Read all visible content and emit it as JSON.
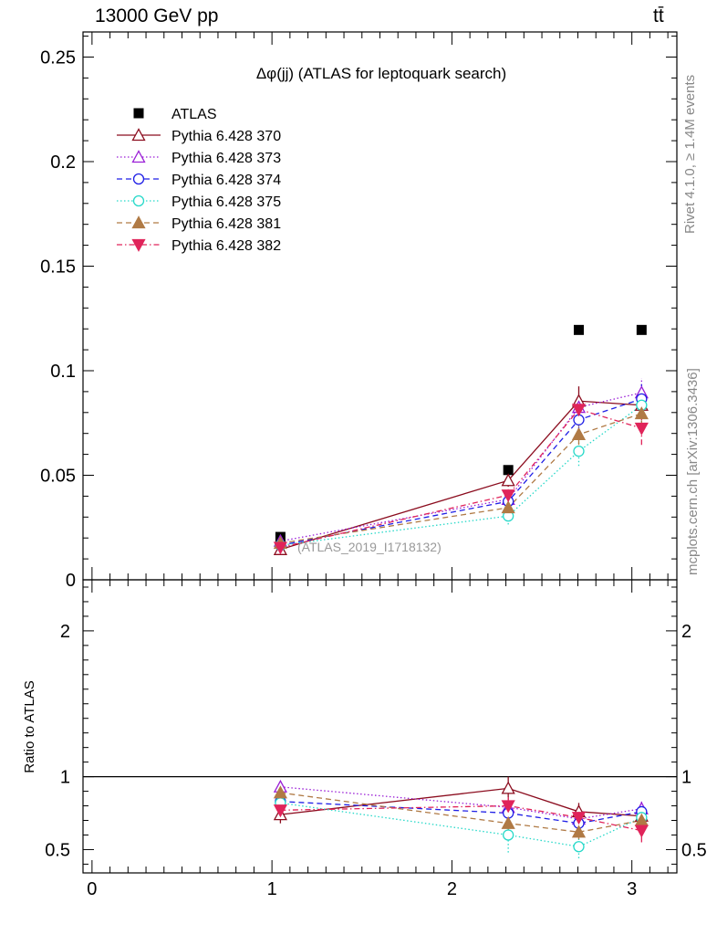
{
  "header": {
    "left": "13000 GeV pp",
    "right": "tt̄"
  },
  "side_labels": {
    "rivet": "Rivet 4.1.0, ≥ 1.4M events",
    "mcplots": "mcplots.cern.ch [arXiv:1306.3436]"
  },
  "watermark": "(ATLAS_2019_I1718132)",
  "colors": {
    "ATLAS": "#000000",
    "p370": "#8b0c1e",
    "p373": "#9a1ed6",
    "p374": "#1f1fe6",
    "p375": "#27d9c9",
    "p381": "#b07a45",
    "p382": "#e0245a"
  },
  "chart_data": [
    {
      "type": "scatter",
      "title": "Δφ(jj) (ATLAS for leptoquark search)",
      "xlabel": "",
      "ylabel": "",
      "xlim": [
        -0.05,
        3.25
      ],
      "ylim": [
        0,
        0.262
      ],
      "yticks": [
        0,
        0.05,
        0.1,
        0.15,
        0.2,
        0.25
      ],
      "ytick_labels": [
        "0",
        "0.05",
        "0.1",
        "0.15",
        "0.2",
        "0.25"
      ],
      "x": [
        1.047,
        2.313,
        2.705,
        3.054
      ],
      "series": [
        {
          "name": "ATLAS",
          "key": "ATLAS",
          "marker": "square-filled",
          "line": "none",
          "values": [
            0.0205,
            0.0525,
            0.1195,
            0.1195
          ],
          "errors": [
            0,
            0,
            0,
            0
          ]
        },
        {
          "name": "Pythia 6.428 370",
          "key": "p370",
          "marker": "triangle-up-open",
          "line": "solid",
          "values": [
            0.0145,
            0.0475,
            0.0855,
            0.0835
          ],
          "errors": [
            0.002,
            0.003,
            0.007,
            0.006
          ]
        },
        {
          "name": "Pythia 6.428 373",
          "key": "p373",
          "marker": "triangle-up-open",
          "line": "dotted",
          "values": [
            0.0185,
            0.0385,
            0.0825,
            0.0895
          ],
          "errors": [
            0.002,
            0.003,
            0.006,
            0.007
          ]
        },
        {
          "name": "Pythia 6.428 374",
          "key": "p374",
          "marker": "circle-open",
          "line": "dashed",
          "values": [
            0.0165,
            0.0375,
            0.0765,
            0.0865
          ],
          "errors": [
            0.002,
            0.003,
            0.006,
            0.007
          ]
        },
        {
          "name": "Pythia 6.428 375",
          "key": "p375",
          "marker": "circle-open",
          "line": "dotted",
          "values": [
            0.0165,
            0.0305,
            0.0615,
            0.0835
          ],
          "errors": [
            0.002,
            0.004,
            0.007,
            0.008
          ]
        },
        {
          "name": "Pythia 6.428 381",
          "key": "p381",
          "marker": "triangle-up-filled",
          "line": "dashed",
          "values": [
            0.0175,
            0.0345,
            0.0695,
            0.0795
          ],
          "errors": [
            0.002,
            0.003,
            0.005,
            0.006
          ]
        },
        {
          "name": "Pythia 6.428 382",
          "key": "p382",
          "marker": "triangle-down-filled",
          "line": "dashdot",
          "values": [
            0.0155,
            0.0405,
            0.0815,
            0.0725
          ],
          "errors": [
            0.002,
            0.003,
            0.006,
            0.008
          ]
        }
      ]
    },
    {
      "type": "scatter",
      "title": "",
      "xlabel": "",
      "ylabel": "Ratio to ATLAS",
      "xlim": [
        -0.05,
        3.25
      ],
      "ylim": [
        0.34,
        2.35
      ],
      "yticks": [
        0.5,
        1,
        2
      ],
      "ytick_labels": [
        "0.5",
        "1",
        "2"
      ],
      "xticks": [
        0,
        1,
        2,
        3
      ],
      "xtick_labels": [
        "0",
        "1",
        "2",
        "3"
      ],
      "reference_line": 1,
      "x": [
        1.047,
        2.313,
        2.705,
        3.054
      ],
      "series": [
        {
          "name": "Pythia 6.428 370",
          "key": "p370",
          "marker": "triangle-up-open",
          "line": "solid",
          "values": [
            0.74,
            0.92,
            0.76,
            0.73
          ],
          "errors": [
            0.06,
            0.08,
            0.06,
            0.05
          ]
        },
        {
          "name": "Pythia 6.428 373",
          "key": "p373",
          "marker": "triangle-up-open",
          "line": "dotted",
          "values": [
            0.93,
            0.79,
            0.71,
            0.78
          ],
          "errors": [
            0.05,
            0.06,
            0.05,
            0.06
          ]
        },
        {
          "name": "Pythia 6.428 374",
          "key": "p374",
          "marker": "circle-open",
          "line": "dashed",
          "values": [
            0.83,
            0.75,
            0.68,
            0.76
          ],
          "errors": [
            0.05,
            0.06,
            0.05,
            0.06
          ]
        },
        {
          "name": "Pythia 6.428 375",
          "key": "p375",
          "marker": "circle-open",
          "line": "dotted",
          "values": [
            0.82,
            0.6,
            0.52,
            0.72
          ],
          "errors": [
            0.06,
            0.12,
            0.08,
            0.07
          ]
        },
        {
          "name": "Pythia 6.428 381",
          "key": "p381",
          "marker": "triangle-up-filled",
          "line": "dashed",
          "values": [
            0.89,
            0.68,
            0.62,
            0.7
          ],
          "errors": [
            0.05,
            0.06,
            0.05,
            0.05
          ]
        },
        {
          "name": "Pythia 6.428 382",
          "key": "p382",
          "marker": "triangle-down-filled",
          "line": "dashdot",
          "values": [
            0.77,
            0.8,
            0.72,
            0.63
          ],
          "errors": [
            0.05,
            0.06,
            0.05,
            0.08
          ]
        }
      ]
    }
  ]
}
